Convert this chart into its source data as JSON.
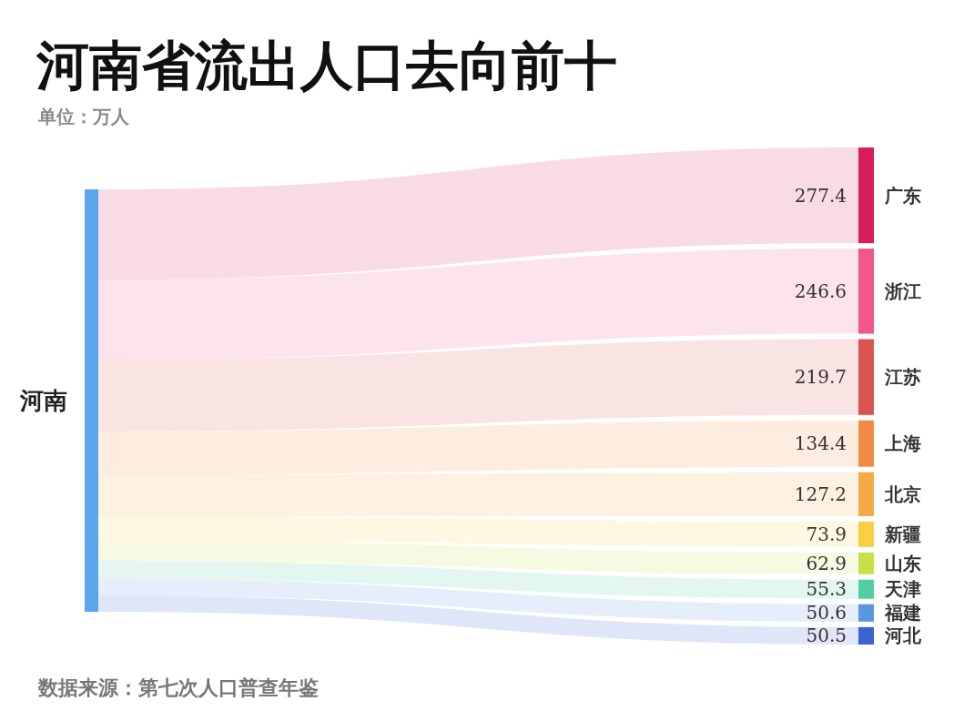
{
  "chart_data": {
    "type": "other",
    "title": "河南省流出人口去向前十",
    "subtitle": "单位：万人",
    "ylabel": "河南",
    "categories": [
      "广东",
      "浙江",
      "江苏",
      "上海",
      "北京",
      "新疆",
      "山东",
      "天津",
      "福建",
      "河北"
    ],
    "values": [
      277.4,
      246.6,
      219.7,
      134.4,
      127.2,
      73.9,
      62.9,
      55.3,
      50.6,
      50.5
    ],
    "colors": [
      "#d81e5b",
      "#f0578a",
      "#d9534f",
      "#f28c45",
      "#f5a947",
      "#f7cf45",
      "#c9df4a",
      "#4fcfa0",
      "#5b97e0",
      "#3a63d6"
    ],
    "color": "#5aa6ea",
    "data_labels": true,
    "annotations": [
      "数据来源：第七次人口普查年鉴"
    ]
  }
}
